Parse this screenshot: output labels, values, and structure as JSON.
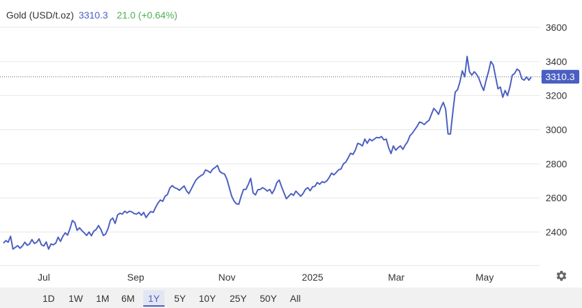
{
  "header": {
    "name": "Gold (USD/t.oz)",
    "price": "3310.3",
    "change": "21.0 (+0.64%)"
  },
  "colors": {
    "line": "#4a5fc1",
    "change": "#4caf50",
    "grid": "#e6e6e6",
    "axis_text": "#333333",
    "price_tag": "#4a5fc1"
  },
  "range_buttons": [
    "1D",
    "1W",
    "1M",
    "6M",
    "1Y",
    "5Y",
    "10Y",
    "25Y",
    "50Y",
    "All"
  ],
  "active_range": "1Y",
  "settings_icon": "gear-icon",
  "chart_data": {
    "type": "line",
    "title": "Gold (USD/t.oz)",
    "series": [
      {
        "values": [
          2335,
          2350,
          2340,
          2375,
          2300,
          2310,
          2320,
          2305,
          2318,
          2340,
          2322,
          2330,
          2356,
          2333,
          2340,
          2360,
          2325,
          2318,
          2342,
          2300,
          2330,
          2325,
          2335,
          2370,
          2345,
          2375,
          2395,
          2382,
          2420,
          2468,
          2455,
          2410,
          2425,
          2408,
          2395,
          2380,
          2400,
          2378,
          2405,
          2415,
          2438,
          2415,
          2380,
          2388,
          2420,
          2470,
          2482,
          2450,
          2500,
          2510,
          2505,
          2522,
          2512,
          2522,
          2518,
          2508,
          2505,
          2515,
          2498,
          2515,
          2485,
          2505,
          2520,
          2515,
          2545,
          2570,
          2588,
          2580,
          2610,
          2620,
          2658,
          2672,
          2660,
          2655,
          2645,
          2658,
          2670,
          2642,
          2625,
          2652,
          2680,
          2705,
          2720,
          2730,
          2738,
          2764,
          2758,
          2748,
          2768,
          2778,
          2790,
          2755,
          2745,
          2740,
          2710,
          2660,
          2610,
          2582,
          2565,
          2563,
          2610,
          2650,
          2650,
          2680,
          2715,
          2630,
          2618,
          2648,
          2650,
          2660,
          2652,
          2640,
          2650,
          2625,
          2650,
          2690,
          2705,
          2665,
          2630,
          2595,
          2610,
          2625,
          2615,
          2640,
          2625,
          2610,
          2625,
          2650,
          2660,
          2642,
          2665,
          2668,
          2690,
          2680,
          2695,
          2690,
          2700,
          2720,
          2745,
          2735,
          2750,
          2765,
          2770,
          2800,
          2810,
          2835,
          2862,
          2855,
          2880,
          2920,
          2915,
          2905,
          2945,
          2920,
          2945,
          2935,
          2945,
          2955,
          2952,
          2960,
          2940,
          2945,
          2895,
          2860,
          2905,
          2880,
          2895,
          2905,
          2885,
          2910,
          2930,
          2965,
          2980,
          3000,
          3020,
          3045,
          3040,
          3030,
          3045,
          3055,
          3090,
          3125,
          3110,
          3090,
          3130,
          3160,
          3120,
          2975,
          2975,
          3100,
          3220,
          3235,
          3280,
          3345,
          3310,
          3430,
          3340,
          3320,
          3340,
          3325,
          3300,
          3260,
          3230,
          3290,
          3340,
          3400,
          3380,
          3310,
          3240,
          3250,
          3190,
          3230,
          3200,
          3250,
          3320,
          3330,
          3355,
          3345,
          3300,
          3290,
          3310,
          3290,
          3310
        ]
      }
    ],
    "x_ticks": [
      "Jul",
      "Sep",
      "Nov",
      "2025",
      "Mar",
      "May"
    ],
    "y_ticks": [
      2400,
      2600,
      2800,
      3000,
      3200,
      3400,
      3600
    ],
    "ylim": [
      2200,
      3700
    ],
    "last_value": 3310.3,
    "grid": true,
    "y_axis_position": "right"
  }
}
